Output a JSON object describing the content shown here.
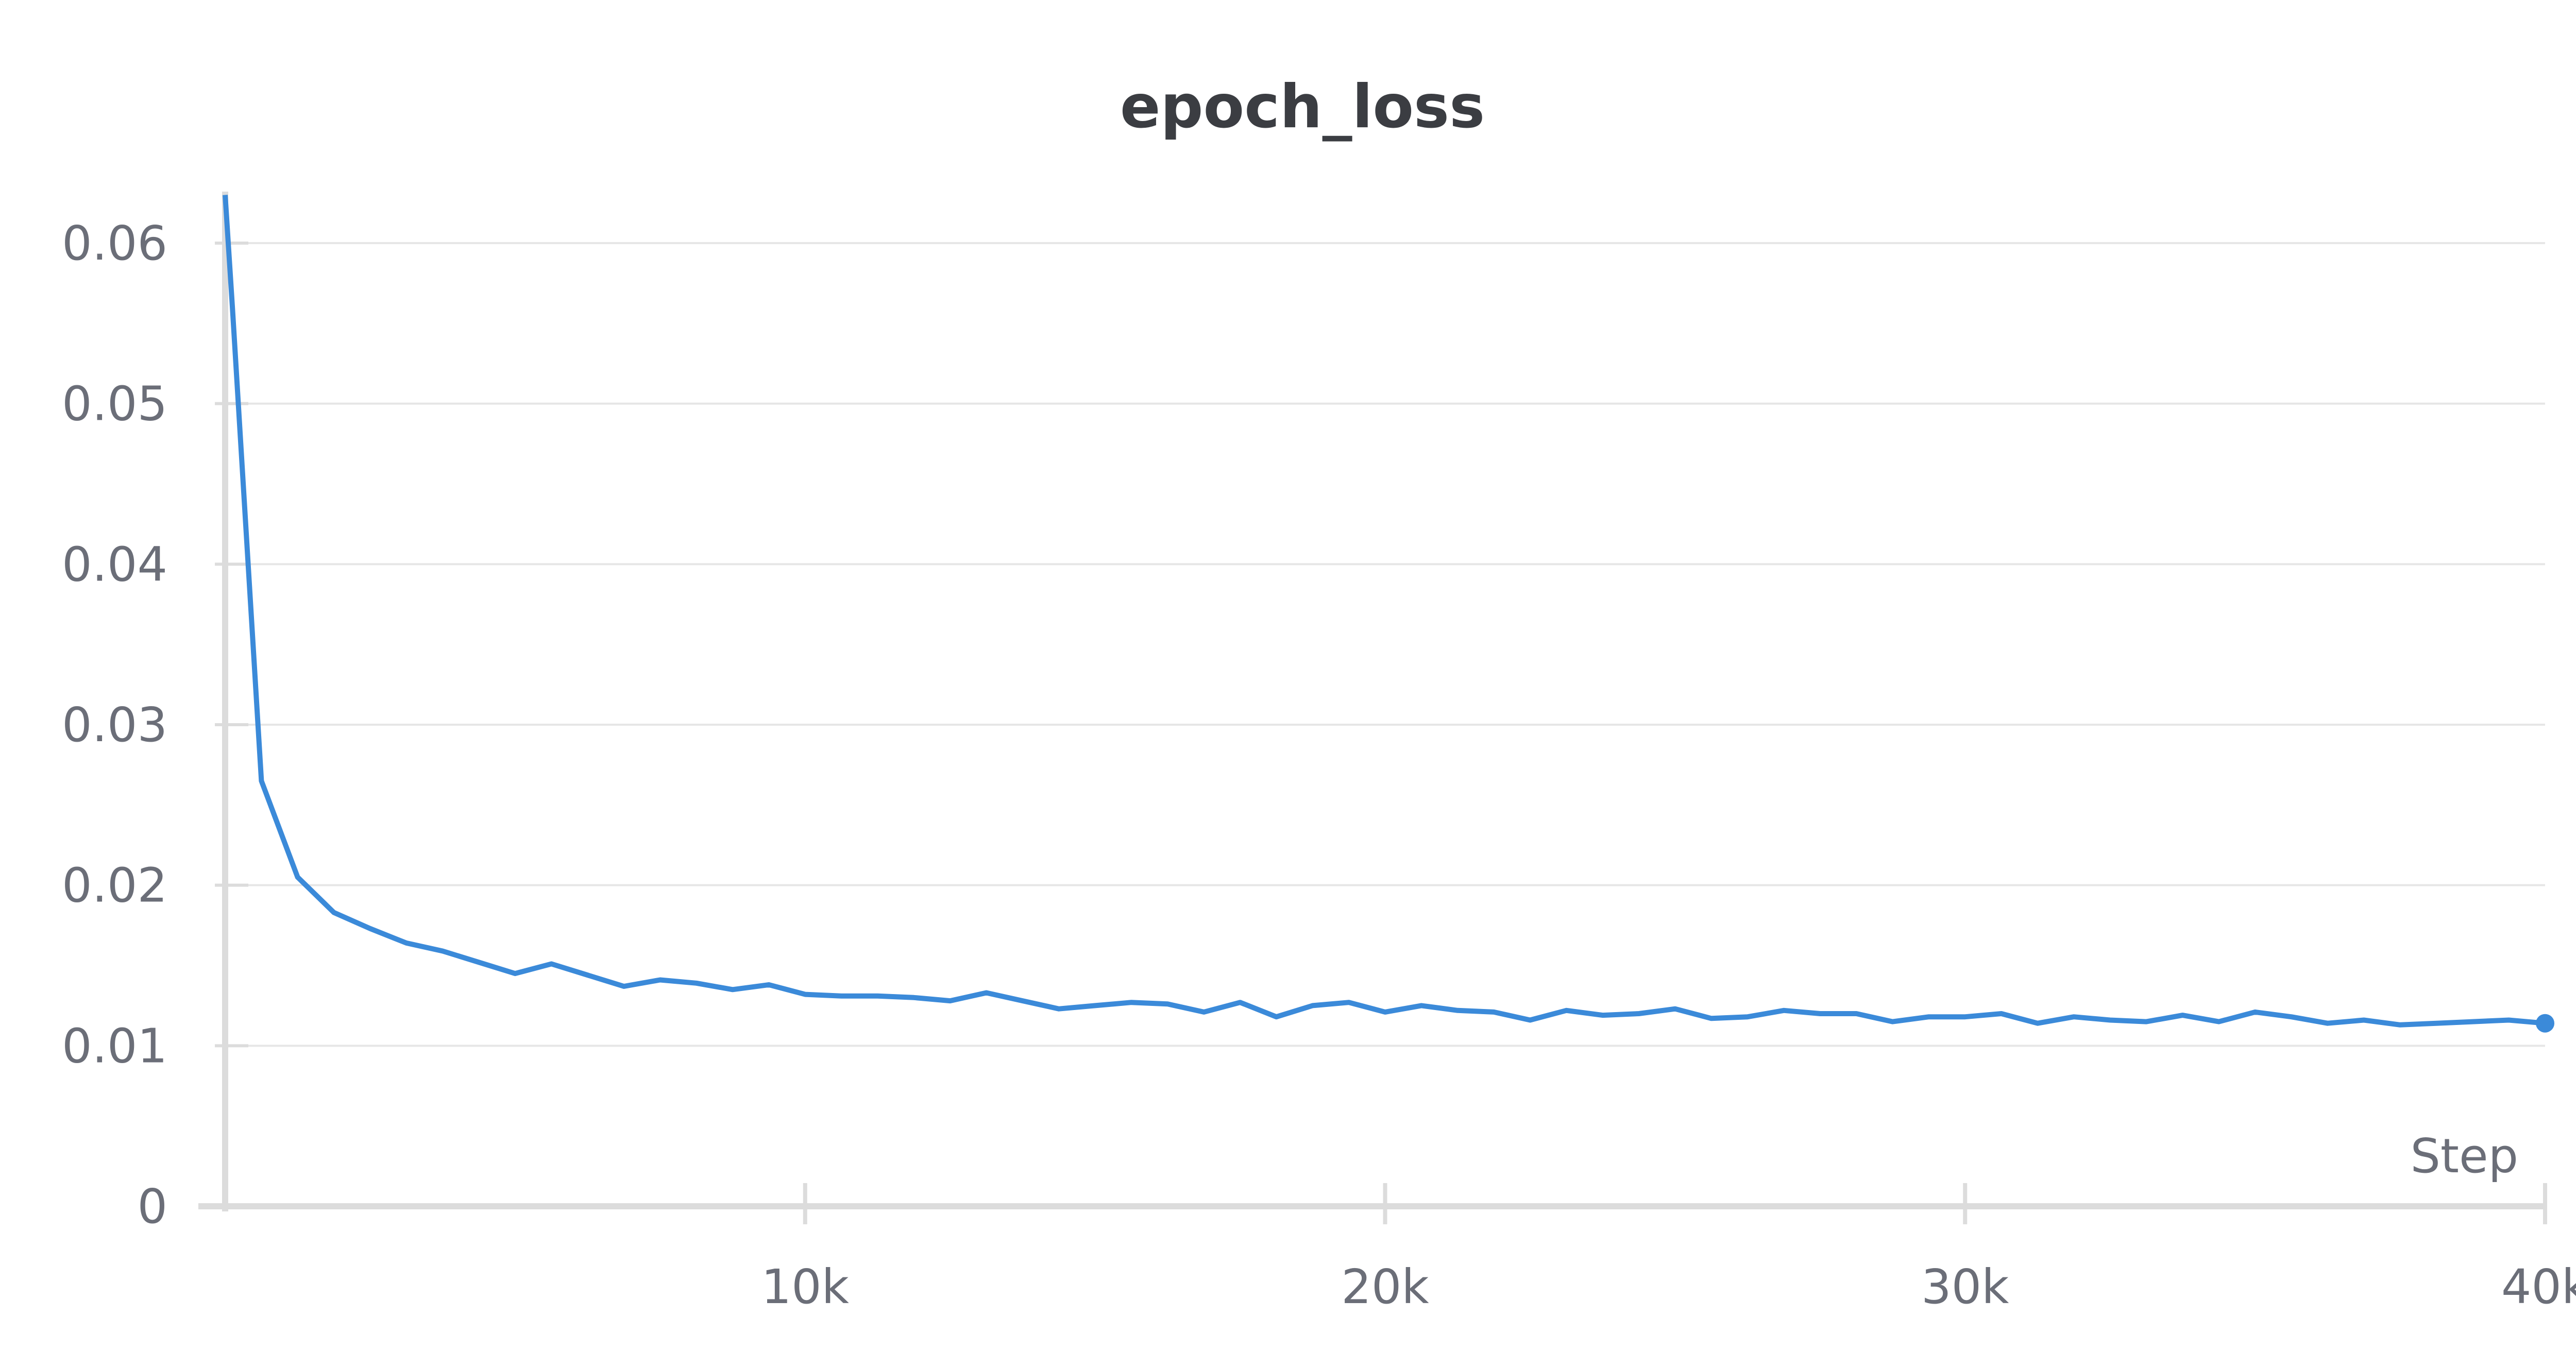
{
  "chart_data": {
    "type": "line",
    "title": "epoch_loss",
    "xlabel": "Step",
    "ylabel": "",
    "xlim": [
      0,
      40000
    ],
    "ylim": [
      0,
      0.06
    ],
    "x_ticks": [
      10000,
      20000,
      30000,
      40000
    ],
    "x_tick_labels": [
      "10k",
      "20k",
      "30k",
      "40k"
    ],
    "y_ticks": [
      0,
      0.01,
      0.02,
      0.03,
      0.04,
      0.05,
      0.06
    ],
    "y_tick_labels": [
      "0",
      "0.01",
      "0.02",
      "0.03",
      "0.04",
      "0.05",
      "0.06"
    ],
    "grid": true,
    "colors": {
      "line": "#3b8ad9",
      "grid": "#e6e6e6",
      "axis": "#dcdcdc",
      "text": "#6b6e78"
    },
    "series": [
      {
        "x": [
          0,
          125,
          625,
          1250,
          1875,
          2500,
          3125,
          3750,
          4375,
          5000,
          5625,
          6250,
          6875,
          7500,
          8125,
          8750,
          9375,
          10000,
          10625,
          11250,
          11875,
          12500,
          13125,
          13750,
          14375,
          15000,
          15625,
          16250,
          16875,
          17500,
          18125,
          18750,
          19375,
          20000,
          20625,
          21250,
          21875,
          22500,
          23125,
          23750,
          24375,
          25000,
          25625,
          26250,
          26875,
          27500,
          28125,
          28750,
          29375,
          30000,
          30625,
          31250,
          31875,
          32500,
          33125,
          33750,
          34375,
          35000,
          35625,
          36250,
          36875,
          37500,
          38125,
          38750,
          39375,
          40000
        ],
        "values": [
          0.063,
          0.056,
          0.0265,
          0.0205,
          0.0183,
          0.0173,
          0.0164,
          0.0159,
          0.0152,
          0.0145,
          0.0151,
          0.0144,
          0.0137,
          0.0141,
          0.0139,
          0.0135,
          0.0138,
          0.0132,
          0.0131,
          0.0131,
          0.013,
          0.0128,
          0.0133,
          0.0128,
          0.0123,
          0.0125,
          0.0127,
          0.0126,
          0.0121,
          0.0127,
          0.0118,
          0.0125,
          0.0127,
          0.0121,
          0.0125,
          0.0122,
          0.0121,
          0.0116,
          0.0122,
          0.0119,
          0.012,
          0.0123,
          0.0117,
          0.0118,
          0.0122,
          0.012,
          0.012,
          0.0115,
          0.0118,
          0.0118,
          0.012,
          0.0114,
          0.0118,
          0.0116,
          0.0115,
          0.0119,
          0.0115,
          0.0121,
          0.0118,
          0.0114,
          0.0116,
          0.0113,
          0.0114,
          0.0115,
          0.0116,
          0.0114
        ]
      }
    ]
  }
}
